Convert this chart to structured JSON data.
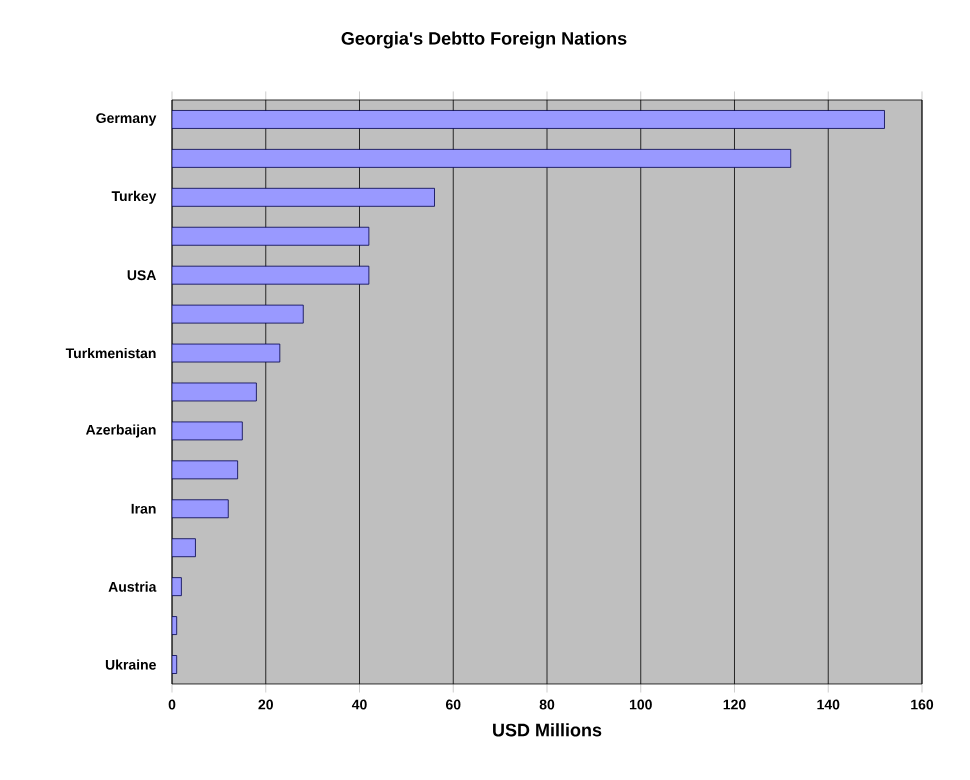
{
  "chart_data": {
    "type": "bar",
    "orientation": "horizontal",
    "title": "Georgia's Debtto Foreign Nations",
    "xlabel": "USD Millions",
    "categories": [
      "Germany",
      null,
      "Turkey",
      null,
      "USA",
      null,
      "Turkmenistan",
      null,
      "Azerbaijan",
      null,
      "Iran",
      null,
      "Austria",
      null,
      "Ukraine"
    ],
    "values": [
      152,
      132,
      56,
      42,
      42,
      28,
      23,
      18,
      15,
      14,
      12,
      5,
      2,
      1,
      1
    ],
    "color": "#9999ff",
    "xlim": [
      0,
      160
    ],
    "xticks": [
      0,
      20,
      40,
      60,
      80,
      100,
      120,
      140,
      160
    ],
    "grid": "x"
  }
}
